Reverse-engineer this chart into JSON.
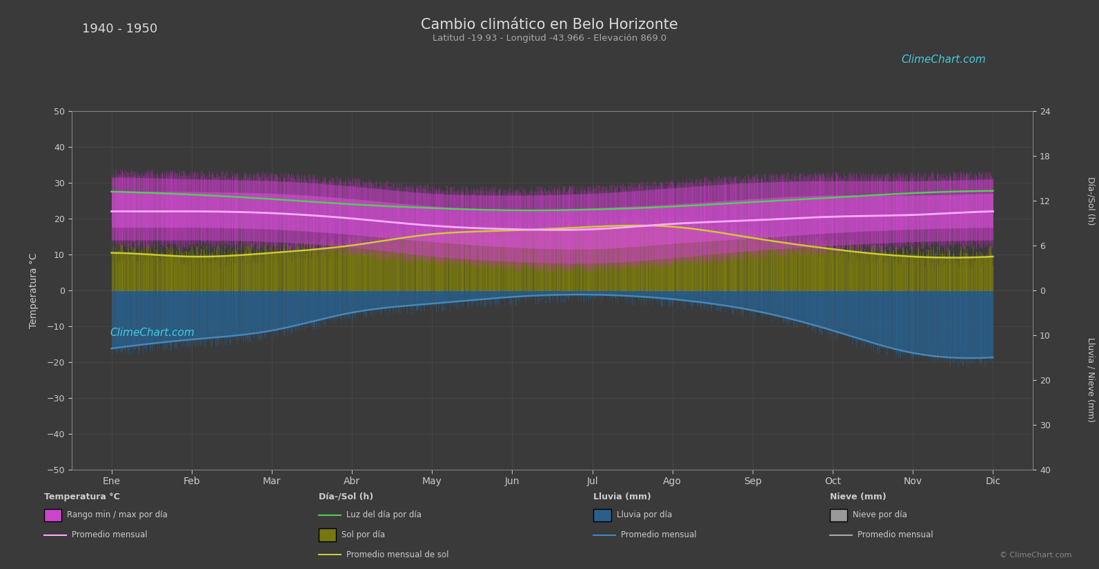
{
  "title": "Cambio climático en Belo Horizonte",
  "subtitle": "Latitud -19.93 - Longitud -43.966 - Elevación 869.0",
  "year_range": "1940 - 1950",
  "bg_color": "#3a3a3a",
  "plot_bg_color": "#3a3a3a",
  "months": [
    "Ene",
    "Feb",
    "Mar",
    "Abr",
    "May",
    "Jun",
    "Jul",
    "Ago",
    "Sep",
    "Oct",
    "Nov",
    "Dic"
  ],
  "temp_ylim": [
    -50,
    50
  ],
  "sun_scale": 2.0833,
  "rain_scale": 1.25,
  "temp_avg_monthly": [
    22.0,
    22.0,
    21.5,
    20.0,
    18.0,
    17.0,
    17.0,
    18.5,
    19.5,
    20.5,
    21.0,
    22.0
  ],
  "temp_min_monthly": [
    17.5,
    17.5,
    17.0,
    15.5,
    13.5,
    12.0,
    11.5,
    13.0,
    14.5,
    16.0,
    17.0,
    17.5
  ],
  "temp_max_monthly": [
    27.5,
    27.5,
    27.0,
    25.5,
    23.5,
    22.5,
    23.0,
    24.0,
    25.5,
    26.5,
    26.5,
    27.0
  ],
  "temp_daily_lo": [
    14.0,
    14.0,
    13.5,
    12.0,
    9.5,
    8.0,
    7.5,
    9.0,
    11.0,
    12.5,
    13.5,
    14.0
  ],
  "temp_daily_hi": [
    31.5,
    31.0,
    30.5,
    29.0,
    27.0,
    26.5,
    27.0,
    28.5,
    30.0,
    30.5,
    30.5,
    31.0
  ],
  "sun_hours_daily": [
    5.0,
    4.5,
    5.0,
    6.0,
    7.5,
    8.0,
    8.5,
    8.5,
    7.0,
    5.5,
    4.5,
    4.5
  ],
  "sun_hours_avg": [
    5.0,
    4.5,
    5.0,
    6.0,
    7.5,
    8.0,
    8.5,
    8.5,
    7.0,
    5.5,
    4.5,
    4.5
  ],
  "daylight_hours": [
    13.2,
    12.8,
    12.2,
    11.5,
    11.0,
    10.7,
    10.8,
    11.2,
    11.8,
    12.4,
    13.0,
    13.3
  ],
  "rain_daily_mm": [
    13.0,
    11.0,
    9.0,
    5.0,
    3.0,
    1.5,
    1.0,
    2.0,
    4.5,
    9.0,
    14.0,
    15.0
  ],
  "rain_avg_mm": [
    13.0,
    11.0,
    9.0,
    5.0,
    3.0,
    1.5,
    1.0,
    2.0,
    4.5,
    9.0,
    14.0,
    15.0
  ],
  "grid_color": "#555555",
  "temp_band_color_hi": "#dd44dd",
  "temp_band_color_lo": "#9922aa",
  "sun_band_color": "#888822",
  "rain_bar_color": "#2a5f8a",
  "rain_line_color": "#4488bb",
  "green_line_color": "#55cc55",
  "pink_line_color": "#ffaaff",
  "yellow_line_color": "#cccc33",
  "spine_color": "#888888",
  "text_color": "#cccccc",
  "label_color": "#aaaaaa",
  "logo_color": "#44ccdd"
}
